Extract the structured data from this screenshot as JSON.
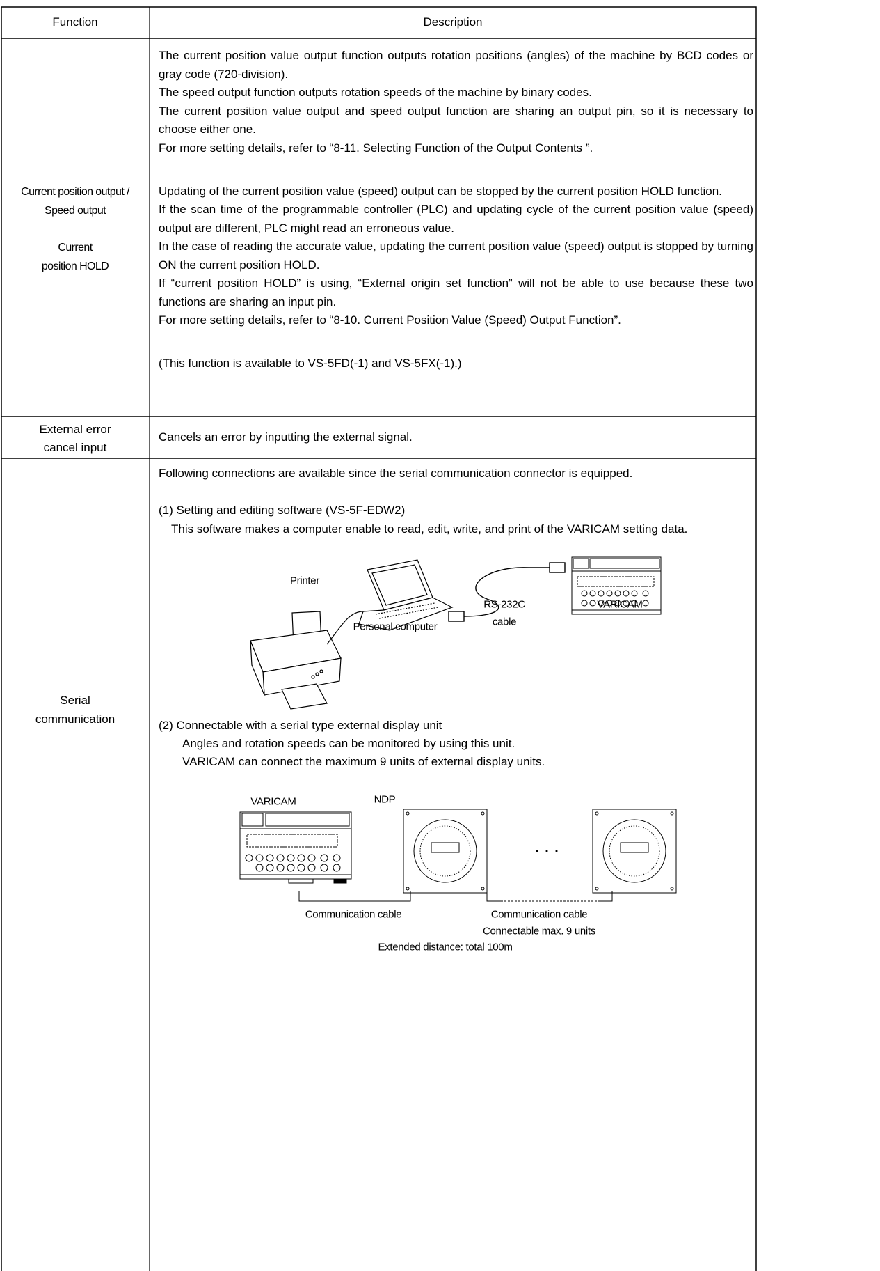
{
  "table": {
    "header": [
      "Function",
      "Description"
    ],
    "rows": [
      {
        "function": [
          "Current position output /",
          "Speed output",
          "Current",
          "position HOLD"
        ],
        "description": [
          [
            "The current position value output function outputs rotation positions (angles) of the machine by BCD codes or gray code (720-division).",
            "The speed output function outputs rotation speeds of the machine by binary codes.",
            "The current position value output and speed output function are sharing an output pin, so it is necessary to choose either one.",
            "For more setting details, refer to “8-11. Selecting Function of the Output Contents ”."
          ],
          [
            "Updating of the current position value (speed) output can be stopped by the current position HOLD function.",
            "If the scan time of the programmable controller (PLC) and updating cycle of the current position value (speed) output are different, PLC might read an erroneous value.",
            "In the case of reading the accurate value, updating the current position value (speed) output is stopped by turning ON the current position HOLD.",
            "If “current position HOLD” is using, “External origin set function” will not be able to use because these two functions are sharing an input pin.",
            "For more setting details, refer to “8-10. Current Position Value (Speed) Output Function”."
          ],
          [
            "(This function is available to VS-5FD(-1) and VS-5FX(-1).)"
          ]
        ]
      },
      {
        "function": [
          "External error",
          "cancel input"
        ],
        "description": [
          [
            "Cancels an error by inputting the external signal."
          ]
        ]
      },
      {
        "function": [
          "Serial",
          "communication"
        ],
        "description": [
          [
            "Following connections are available since the serial communication connector is equipped."
          ],
          [
            "(1) Setting and editing software (VS-5F-EDW2)",
            "This software makes a computer enable to read, edit, write, and print of the VARICAM setting data."
          ],
          [
            "(2) Connectable with a serial type external display unit",
            "Angles and rotation speeds can be monitored by using this unit.",
            "VARICAM can connect the maximum 9 units of external display units."
          ]
        ]
      }
    ]
  },
  "diagrams": [
    {
      "labels": [
        "Printer",
        "Personal computer",
        "RS-232C",
        "cable",
        "VARICAM"
      ]
    },
    {
      "labels": [
        "VARICAM",
        "NDP",
        "Communication cable",
        "Communication cable",
        "Connectable max. 9 units",
        "Extended distance: total 100m"
      ]
    }
  ]
}
